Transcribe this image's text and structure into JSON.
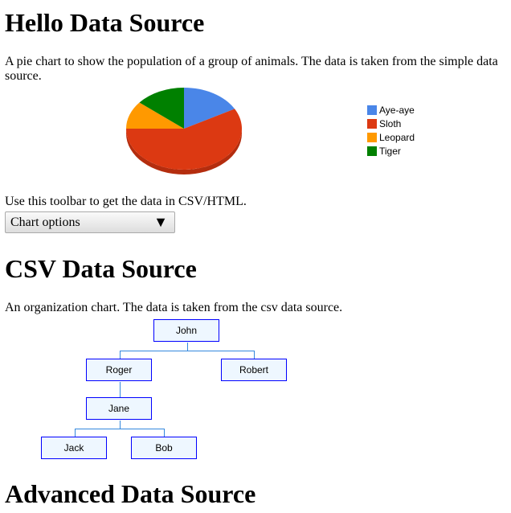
{
  "sections": [
    {
      "title": "Hello Data Source",
      "description": "A pie chart to show the population of a group of animals. The data is taken from the simple data source."
    },
    {
      "title": "CSV Data Source",
      "description": "An organization chart. The data is taken from the csv data source."
    },
    {
      "title": "Advanced Data Source"
    }
  ],
  "toolbar": {
    "text": "Use this toolbar to get the data in CSV/HTML.",
    "label": "Chart options",
    "arrow": "▼"
  },
  "chart_data": {
    "type": "pie",
    "is3D": true,
    "legend_position": "right",
    "categories": [
      "Aye-aye",
      "Sloth",
      "Leopard",
      "Tiger"
    ],
    "values": [
      17,
      58,
      11,
      14
    ],
    "colors": [
      "#4a86e8",
      "#dc3912",
      "#ff9900",
      "#008000"
    ]
  },
  "org": {
    "nodes": [
      "John",
      "Roger",
      "Robert",
      "Jane",
      "Jack",
      "Bob"
    ]
  }
}
